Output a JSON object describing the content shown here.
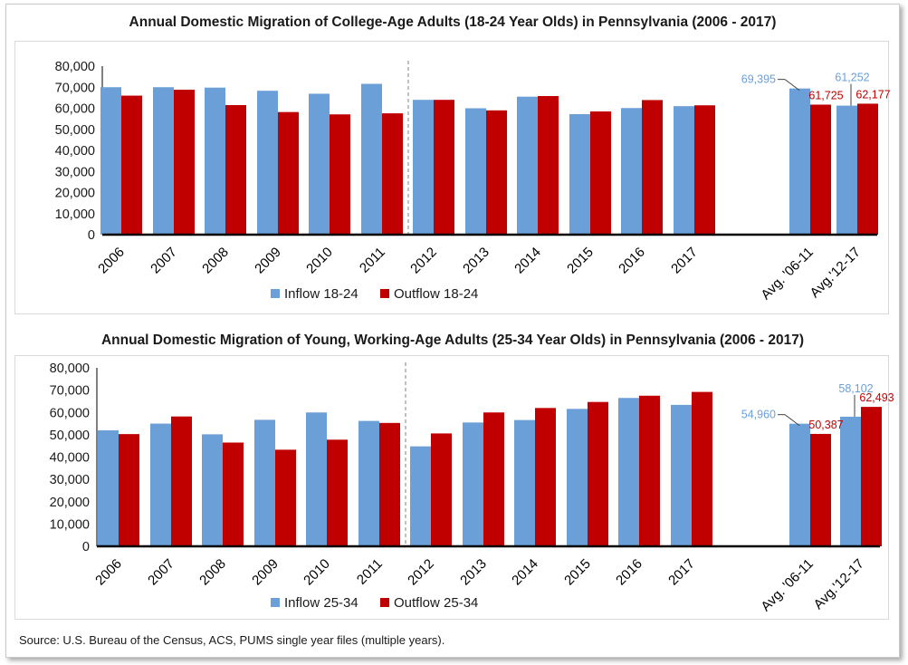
{
  "source_note": "Source: U.S. Bureau of the Census, ACS, PUMS single year files (multiple years).",
  "colors": {
    "inflow": "#6a9fd8",
    "outflow": "#c00000",
    "axis": "#000000",
    "divider": "#808080"
  },
  "chart_data": [
    {
      "type": "bar",
      "title": "Annual Domestic Migration of College-Age Adults (18-24 Year Olds) in Pennsylvania (2006 - 2017)",
      "categories": [
        "2006",
        "2007",
        "2008",
        "2009",
        "2010",
        "2011",
        "2012",
        "2013",
        "2014",
        "2015",
        "2016",
        "2017",
        "Avg. '06-11",
        "Avg.'12-17"
      ],
      "series": [
        {
          "name": "Inflow 18-24",
          "values": [
            70000,
            70000,
            69800,
            68300,
            66900,
            71600,
            64000,
            60000,
            65500,
            57200,
            60100,
            61000,
            69395,
            61252
          ]
        },
        {
          "name": "Outflow 18-24",
          "values": [
            66000,
            68800,
            61500,
            58200,
            57100,
            57600,
            64000,
            59000,
            65800,
            58500,
            63900,
            61400,
            61725,
            62177
          ]
        }
      ],
      "data_labels": [
        {
          "category": 12,
          "inflow": "69,395",
          "outflow": "61,725"
        },
        {
          "category": 13,
          "inflow": "61,252",
          "outflow": "62,177"
        }
      ],
      "ylim": [
        0,
        80000
      ],
      "yticks": [
        "0",
        "10,000",
        "20,000",
        "30,000",
        "40,000",
        "50,000",
        "60,000",
        "70,000",
        "80,000"
      ],
      "divider_after": "2011",
      "legend_position": "bottom",
      "grid": false
    },
    {
      "type": "bar",
      "title": "Annual Domestic Migration of Young, Working-Age Adults (25-34 Year Olds) in Pennsylvania (2006 - 2017)",
      "categories": [
        "2006",
        "2007",
        "2008",
        "2009",
        "2010",
        "2011",
        "2012",
        "2013",
        "2014",
        "2015",
        "2016",
        "2017",
        "Avg. '06-11",
        "Avg.'12-17"
      ],
      "series": [
        {
          "name": "Inflow 25-34",
          "values": [
            52000,
            55000,
            50200,
            56700,
            60000,
            56200,
            44800,
            55500,
            56600,
            61600,
            66500,
            63400,
            54960,
            58102
          ]
        },
        {
          "name": "Outflow 25-34",
          "values": [
            50300,
            58200,
            46500,
            43300,
            47800,
            55300,
            50600,
            60000,
            62000,
            64700,
            67500,
            69200,
            50387,
            62493
          ]
        }
      ],
      "data_labels": [
        {
          "category": 12,
          "inflow": "54,960",
          "outflow": "50,387"
        },
        {
          "category": 13,
          "inflow": "58,102",
          "outflow": "62,493"
        }
      ],
      "ylim": [
        0,
        80000
      ],
      "yticks": [
        "0",
        "10,000",
        "20,000",
        "30,000",
        "40,000",
        "50,000",
        "60,000",
        "70,000",
        "80,000"
      ],
      "divider_after": "2011",
      "legend_position": "bottom",
      "grid": false
    }
  ]
}
